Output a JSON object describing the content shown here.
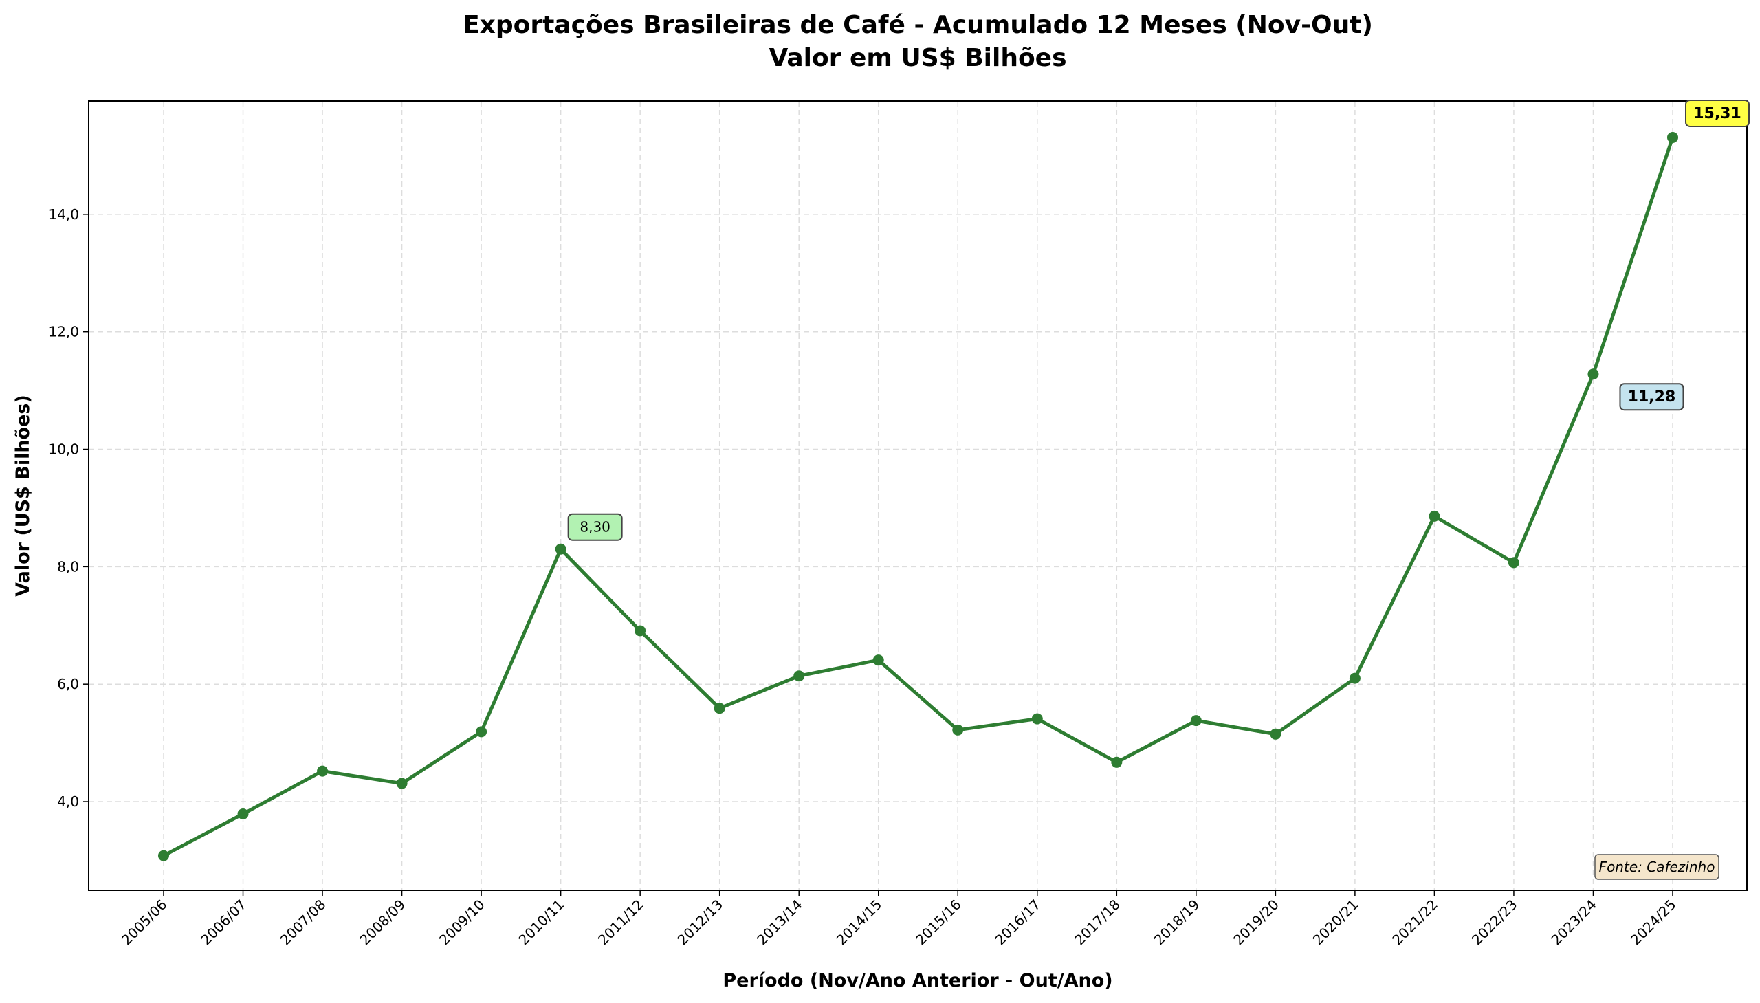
{
  "chart_data": {
    "type": "line",
    "title": "Exportações Brasileiras de Café - Acumulado 12 Meses (Nov-Out)",
    "subtitle": "Valor em US$ Bilhões",
    "xlabel": "Período (Nov/Ano Anterior - Out/Ano)",
    "ylabel": "Valor (US$ Bilhões)",
    "categories": [
      "2005/06",
      "2006/07",
      "2007/08",
      "2008/09",
      "2009/10",
      "2010/11",
      "2011/12",
      "2012/13",
      "2013/14",
      "2014/15",
      "2015/16",
      "2016/17",
      "2017/18",
      "2018/19",
      "2019/20",
      "2020/21",
      "2021/22",
      "2022/23",
      "2023/24",
      "2024/25"
    ],
    "values": [
      3.08,
      3.79,
      4.52,
      4.31,
      5.19,
      8.3,
      6.91,
      5.59,
      6.14,
      6.41,
      5.22,
      5.41,
      4.67,
      5.38,
      5.15,
      6.1,
      8.86,
      8.07,
      11.28,
      15.31
    ],
    "yticks": [
      "4,0",
      "6,0",
      "8,0",
      "10,0",
      "12,0",
      "14,0"
    ],
    "ytick_values": [
      4,
      6,
      8,
      10,
      12,
      14
    ],
    "ylim": [
      2.49,
      15.93
    ],
    "grid": true,
    "line_color": "#2e7d32",
    "annotations": [
      {
        "label": "8,30",
        "category": "2010/11",
        "color": "#b2f2b2",
        "bold": false
      },
      {
        "label": "11,28",
        "category": "2023/24",
        "color": "#c4e3ee",
        "bold": true
      },
      {
        "label": "15,31",
        "category": "2024/25",
        "color": "#ffff44",
        "bold": true
      }
    ],
    "source_note": "Fonte: Cafezinho",
    "source_note_color": "#f5e6cc"
  }
}
